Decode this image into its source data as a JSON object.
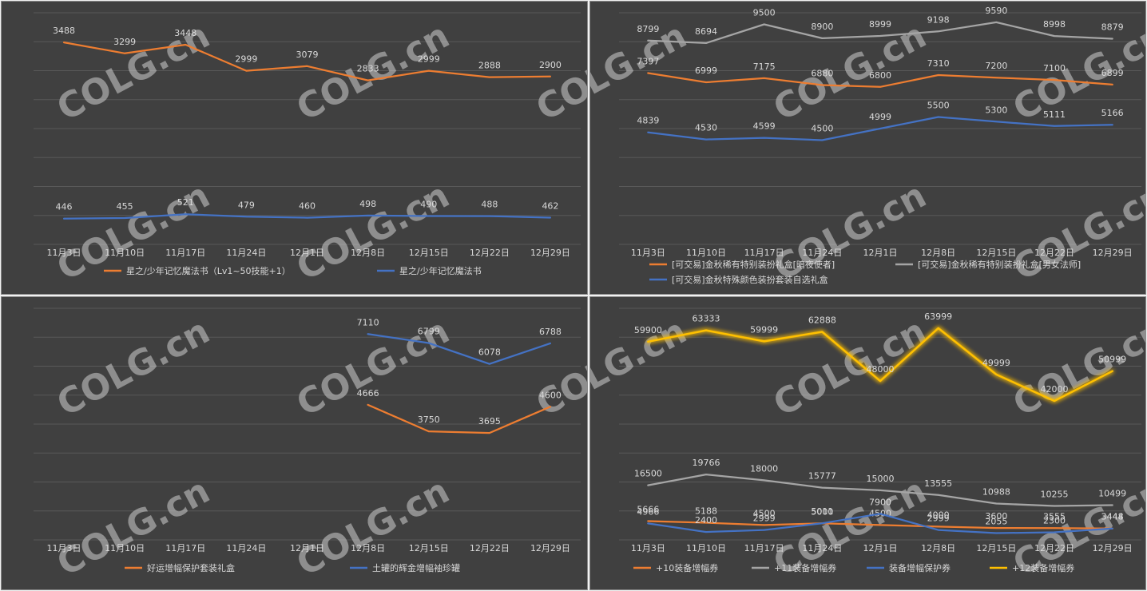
{
  "x_categories": [
    "11月3日",
    "11月10日",
    "11月17日",
    "11月24日",
    "12月1日",
    "12月8日",
    "12月15日",
    "12月22日",
    "12月29日"
  ],
  "watermark": "COLG.cn",
  "colors": {
    "orange": "#ed7d31",
    "gray": "#a5a5a5",
    "blue": "#4472c4",
    "yellow": "#ffc000",
    "grid": "#595959",
    "background": "#404040"
  },
  "chart_data": [
    {
      "type": "line",
      "categories": [
        "11月3日",
        "11月10日",
        "11月17日",
        "11月24日",
        "12月1日",
        "12月8日",
        "12月15日",
        "12月22日",
        "12月29日"
      ],
      "ylim": [
        0,
        4000
      ],
      "grid": true,
      "legend": "bottom",
      "series": [
        {
          "name": "星之/少年记忆魔法书（Lv1~50技能+1）",
          "color": "#ed7d31",
          "values": [
            3488,
            3299,
            3448,
            2999,
            3079,
            2833,
            2999,
            2888,
            2900
          ]
        },
        {
          "name": "星之/少年记忆魔法书",
          "color": "#4472c4",
          "values": [
            446,
            455,
            521,
            479,
            460,
            498,
            490,
            488,
            462
          ]
        }
      ]
    },
    {
      "type": "line",
      "categories": [
        "11月3日",
        "11月10日",
        "11月17日",
        "11月24日",
        "12月1日",
        "12月8日",
        "12月15日",
        "12月22日",
        "12月29日"
      ],
      "ylim": [
        0,
        10000
      ],
      "grid": true,
      "legend": "bottom",
      "series": [
        {
          "name": "[可交易]金秋稀有特别装扮礼盒[暗夜使者]",
          "color": "#ed7d31",
          "values": [
            7397,
            6999,
            7175,
            6880,
            6800,
            7310,
            7200,
            7100,
            6899
          ]
        },
        {
          "name": "[可交易]金秋稀有特别装扮礼盒[男女法师]",
          "color": "#a5a5a5",
          "values": [
            8799,
            8694,
            9500,
            8900,
            8999,
            9198,
            9590,
            8998,
            8879
          ]
        },
        {
          "name": "[可交易]金秋特殊颜色装扮套装自选礼盒",
          "color": "#4472c4",
          "values": [
            4839,
            4530,
            4599,
            4500,
            4999,
            5500,
            5300,
            5111,
            5166
          ]
        }
      ]
    },
    {
      "type": "line",
      "categories": [
        "11月3日",
        "11月10日",
        "11月17日",
        "11月24日",
        "12月1日",
        "12月8日",
        "12月15日",
        "12月22日",
        "12月29日"
      ],
      "ylim": [
        0,
        8000
      ],
      "grid": true,
      "legend": "bottom",
      "series": [
        {
          "name": "好运增幅保护套装礼盒",
          "color": "#ed7d31",
          "values": [
            null,
            null,
            null,
            null,
            null,
            4666,
            3750,
            3695,
            4600
          ]
        },
        {
          "name": "土罐的辉金增幅袖珍罐",
          "color": "#4472c4",
          "values": [
            null,
            null,
            null,
            null,
            null,
            7110,
            6799,
            6078,
            6788
          ]
        }
      ]
    },
    {
      "type": "line",
      "categories": [
        "11月3日",
        "11月10日",
        "11月17日",
        "11月24日",
        "12月1日",
        "12月8日",
        "12月15日",
        "12月22日",
        "12月29日"
      ],
      "ylim": [
        0,
        70000
      ],
      "grid": true,
      "legend": "bottom",
      "series": [
        {
          "name": "+10装备增幅券",
          "color": "#ed7d31",
          "values": [
            5666,
            5188,
            4500,
            5000,
            4500,
            4000,
            3600,
            3555,
            3448
          ]
        },
        {
          "name": "+11装备增幅券",
          "color": "#a5a5a5",
          "values": [
            16500,
            19766,
            18000,
            15777,
            15000,
            13555,
            10988,
            10255,
            10499
          ]
        },
        {
          "name": "装备增幅保护券",
          "color": "#4472c4",
          "values": [
            4966,
            2400,
            2999,
            5011,
            7900,
            2999,
            2055,
            2300,
            3444
          ]
        },
        {
          "name": "+12装备增幅券",
          "color": "#ffc000",
          "glow": true,
          "values": [
            59900,
            63333,
            59999,
            62888,
            48000,
            63999,
            49999,
            42000,
            50999
          ]
        }
      ]
    }
  ]
}
